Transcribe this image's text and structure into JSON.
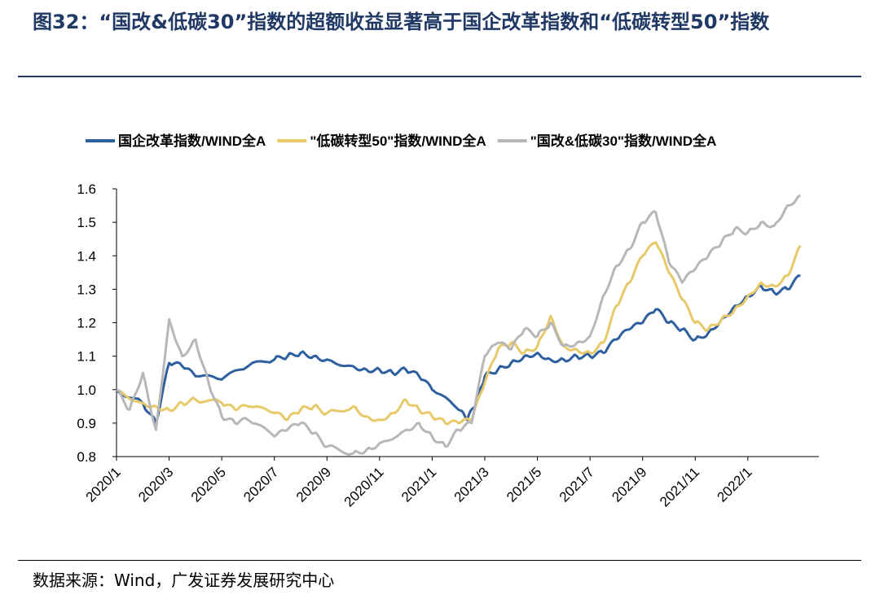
{
  "page": {
    "title": "图32：“国改&低碳30”指数的超额收益显著高于国企改革指数和“低碳转型50”指数",
    "source": "数据来源：Wind，广发证券发展研究中心"
  },
  "chart_data": {
    "type": "line",
    "title": "",
    "xlabel": "",
    "ylabel": "",
    "ylim": [
      0.8,
      1.6
    ],
    "yticks": [
      "0.8",
      "0.9",
      "1.0",
      "1.1",
      "1.2",
      "1.3",
      "1.4",
      "1.5",
      "1.6"
    ],
    "xticks": [
      "2020/1",
      "2020/3",
      "2020/5",
      "2020/7",
      "2020/9",
      "2020/11",
      "2021/1",
      "2021/3",
      "2021/5",
      "2021/7",
      "2021/9",
      "2021/11",
      "2022/1"
    ],
    "x_range": [
      "2020/1",
      "2022/3"
    ],
    "grid": false,
    "legend_position": "top",
    "series": [
      {
        "name": "国企改革指数/WIND全A",
        "color": "#2e5f9e",
        "points": [
          [
            "2020/1",
            1.0
          ],
          [
            "2020/2",
            0.96
          ],
          [
            "2020/2",
            0.9
          ],
          [
            "2020/3",
            1.08
          ],
          [
            "2020/3",
            1.07
          ],
          [
            "2020/4",
            1.04
          ],
          [
            "2020/5",
            1.03
          ],
          [
            "2020/6",
            1.07
          ],
          [
            "2020/7",
            1.09
          ],
          [
            "2020/7",
            1.1
          ],
          [
            "2020/8",
            1.11
          ],
          [
            "2020/8",
            1.1
          ],
          [
            "2020/9",
            1.09
          ],
          [
            "2020/10",
            1.07
          ],
          [
            "2020/10",
            1.06
          ],
          [
            "2020/11",
            1.06
          ],
          [
            "2020/11",
            1.05
          ],
          [
            "2020/12",
            1.06
          ],
          [
            "2020/12",
            1.04
          ],
          [
            "2021/1",
            1.0
          ],
          [
            "2021/2",
            0.94
          ],
          [
            "2021/2",
            0.91
          ],
          [
            "2021/2",
            0.96
          ],
          [
            "2021/3",
            1.04
          ],
          [
            "2021/3",
            1.06
          ],
          [
            "2021/4",
            1.08
          ],
          [
            "2021/4",
            1.1
          ],
          [
            "2021/5",
            1.11
          ],
          [
            "2021/5",
            1.09
          ],
          [
            "2021/6",
            1.09
          ],
          [
            "2021/6",
            1.1
          ],
          [
            "2021/7",
            1.1
          ],
          [
            "2021/7",
            1.11
          ],
          [
            "2021/8",
            1.15
          ],
          [
            "2021/8",
            1.18
          ],
          [
            "2021/9",
            1.2
          ],
          [
            "2021/9",
            1.24
          ],
          [
            "2021/10",
            1.2
          ],
          [
            "2021/10",
            1.18
          ],
          [
            "2021/11",
            1.15
          ],
          [
            "2021/11",
            1.17
          ],
          [
            "2021/12",
            1.21
          ],
          [
            "2021/12",
            1.25
          ],
          [
            "2022/1",
            1.28
          ],
          [
            "2022/1",
            1.31
          ],
          [
            "2022/2",
            1.29
          ],
          [
            "2022/2",
            1.3
          ],
          [
            "2022/3",
            1.34
          ]
        ]
      },
      {
        "name": "\"低碳转型50\"指数/WIND全A",
        "color": "#e8c96a",
        "points": [
          [
            "2020/1",
            1.0
          ],
          [
            "2020/2",
            0.96
          ],
          [
            "2020/2",
            0.95
          ],
          [
            "2020/3",
            0.94
          ],
          [
            "2020/3",
            0.96
          ],
          [
            "2020/4",
            0.97
          ],
          [
            "2020/5",
            0.96
          ],
          [
            "2020/5",
            0.94
          ],
          [
            "2020/6",
            0.95
          ],
          [
            "2020/7",
            0.93
          ],
          [
            "2020/7",
            0.91
          ],
          [
            "2020/8",
            0.94
          ],
          [
            "2020/8",
            0.95
          ],
          [
            "2020/9",
            0.93
          ],
          [
            "2020/10",
            0.95
          ],
          [
            "2020/10",
            0.92
          ],
          [
            "2020/11",
            0.91
          ],
          [
            "2020/11",
            0.93
          ],
          [
            "2020/12",
            0.97
          ],
          [
            "2020/12",
            0.94
          ],
          [
            "2021/1",
            0.92
          ],
          [
            "2021/1",
            0.9
          ],
          [
            "2021/2",
            0.9
          ],
          [
            "2021/2",
            0.91
          ],
          [
            "2021/3",
            1.02
          ],
          [
            "2021/3",
            1.12
          ],
          [
            "2021/4",
            1.14
          ],
          [
            "2021/4",
            1.11
          ],
          [
            "2021/5",
            1.13
          ],
          [
            "2021/5",
            1.22
          ],
          [
            "2021/6",
            1.13
          ],
          [
            "2021/6",
            1.12
          ],
          [
            "2021/7",
            1.11
          ],
          [
            "2021/7",
            1.14
          ],
          [
            "2021/8",
            1.25
          ],
          [
            "2021/8",
            1.32
          ],
          [
            "2021/9",
            1.4
          ],
          [
            "2021/9",
            1.44
          ],
          [
            "2021/10",
            1.35
          ],
          [
            "2021/10",
            1.27
          ],
          [
            "2021/11",
            1.2
          ],
          [
            "2021/11",
            1.18
          ],
          [
            "2021/12",
            1.21
          ],
          [
            "2021/12",
            1.24
          ],
          [
            "2022/1",
            1.28
          ],
          [
            "2022/1",
            1.32
          ],
          [
            "2022/2",
            1.31
          ],
          [
            "2022/2",
            1.34
          ],
          [
            "2022/3",
            1.43
          ]
        ]
      },
      {
        "name": "\"国改&低碳30\"指数/WIND全A",
        "color": "#b7b7b7",
        "points": [
          [
            "2020/1",
            1.0
          ],
          [
            "2020/1",
            0.94
          ],
          [
            "2020/2",
            1.05
          ],
          [
            "2020/2",
            0.88
          ],
          [
            "2020/3",
            1.21
          ],
          [
            "2020/3",
            1.1
          ],
          [
            "2020/4",
            1.15
          ],
          [
            "2020/4",
            1.02
          ],
          [
            "2020/5",
            0.92
          ],
          [
            "2020/5",
            0.9
          ],
          [
            "2020/6",
            0.91
          ],
          [
            "2020/7",
            0.86
          ],
          [
            "2020/7",
            0.88
          ],
          [
            "2020/8",
            0.9
          ],
          [
            "2020/8",
            0.87
          ],
          [
            "2020/9",
            0.83
          ],
          [
            "2020/10",
            0.81
          ],
          [
            "2020/10",
            0.82
          ],
          [
            "2020/11",
            0.84
          ],
          [
            "2020/12",
            0.88
          ],
          [
            "2020/12",
            0.9
          ],
          [
            "2021/1",
            0.86
          ],
          [
            "2021/1",
            0.83
          ],
          [
            "2021/2",
            0.88
          ],
          [
            "2021/2",
            0.9
          ],
          [
            "2021/3",
            1.1
          ],
          [
            "2021/3",
            1.14
          ],
          [
            "2021/4",
            1.12
          ],
          [
            "2021/4",
            1.18
          ],
          [
            "2021/5",
            1.16
          ],
          [
            "2021/5",
            1.2
          ],
          [
            "2021/6",
            1.13
          ],
          [
            "2021/6",
            1.14
          ],
          [
            "2021/7",
            1.16
          ],
          [
            "2021/7",
            1.28
          ],
          [
            "2021/8",
            1.37
          ],
          [
            "2021/8",
            1.42
          ],
          [
            "2021/9",
            1.5
          ],
          [
            "2021/9",
            1.53
          ],
          [
            "2021/10",
            1.38
          ],
          [
            "2021/10",
            1.32
          ],
          [
            "2021/11",
            1.36
          ],
          [
            "2021/11",
            1.4
          ],
          [
            "2021/12",
            1.44
          ],
          [
            "2021/12",
            1.48
          ],
          [
            "2022/1",
            1.47
          ],
          [
            "2022/1",
            1.5
          ],
          [
            "2022/2",
            1.49
          ],
          [
            "2022/2",
            1.55
          ],
          [
            "2022/3",
            1.58
          ]
        ]
      }
    ]
  }
}
